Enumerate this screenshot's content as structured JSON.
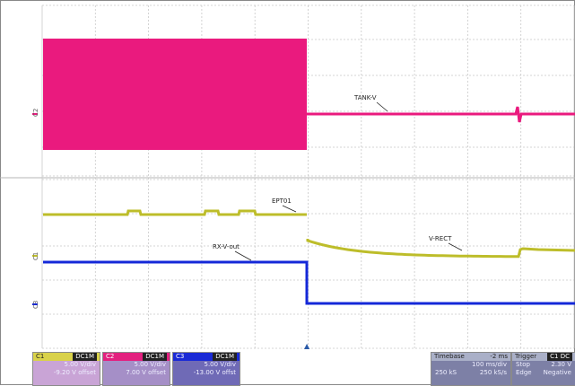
{
  "screen": {
    "channel_side_labels": [
      "C2",
      "C1",
      "C3"
    ],
    "trace_labels": {
      "tank_v": "TANK-V",
      "ept01": "EPT01",
      "v_rect": "V-RECT",
      "rx_v_out": "RX-V-out"
    },
    "trigger_marker": "▲"
  },
  "colors": {
    "c1": "#bdbd2a",
    "c2": "#ea1a7e",
    "c3": "#1428d8",
    "grid": "#c9c9c9",
    "panel_c1": "#c9a4d6",
    "panel_c2": "#a58fc7",
    "panel_c3": "#6f6ab6",
    "panel_right": "#7d80a6"
  },
  "channels": [
    {
      "id": "C1",
      "badge": "DC1M",
      "vdiv": "5.00 V/div",
      "offset": "-9.20 V offset"
    },
    {
      "id": "C2",
      "badge": "DC1M",
      "vdiv": "5.00 V/div",
      "offset": "7.00 V offset"
    },
    {
      "id": "C3",
      "badge": "DC1M",
      "vdiv": "5.00 V/div",
      "offset": "-13.00 V offst"
    }
  ],
  "timebase": {
    "title": "Timebase",
    "value": "-2 ms",
    "row2_left": "",
    "row2_right": "100 ms/div",
    "row3_left": "250 kS",
    "row3_right": "250 kS/s"
  },
  "trigger": {
    "title": "Trigger",
    "badge": "C1 DC",
    "row2_left": "Stop",
    "row2_right": "2.30 V",
    "row3_left": "Edge",
    "row3_right": "Negative"
  }
}
